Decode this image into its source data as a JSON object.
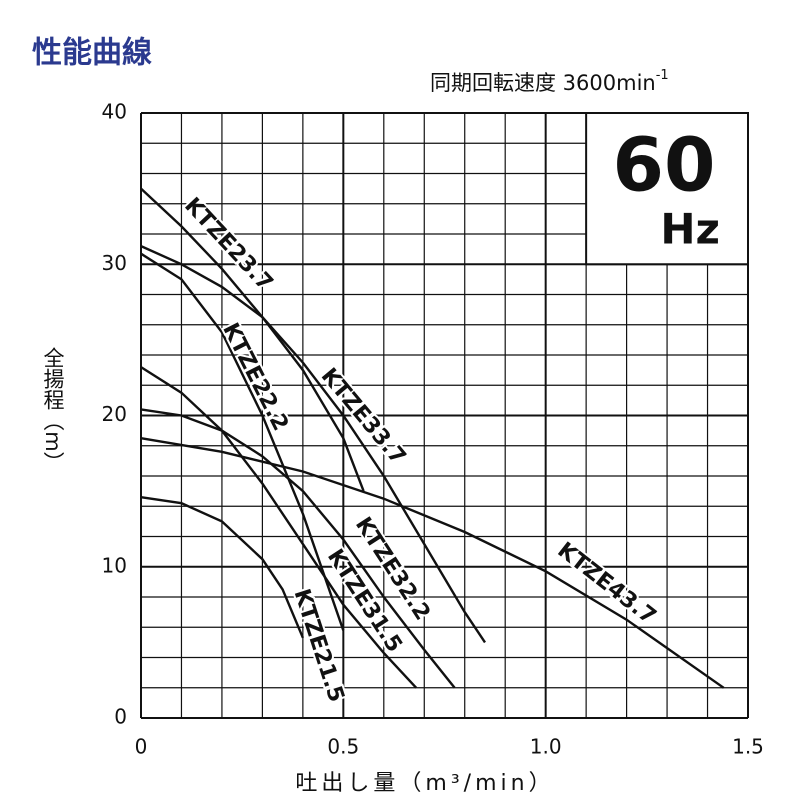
{
  "chart_data": {
    "type": "line",
    "title": "性能曲線",
    "subtitle": "同期回転速度 3600min",
    "subtitle_superscript": "-1",
    "badge_value": "60",
    "badge_unit": "Hz",
    "y_label": "全揚程（m）",
    "x_label": "吐出し量（m³/min）",
    "xlim": [
      0,
      1.5
    ],
    "ylim": [
      0,
      40
    ],
    "xticks": [
      0,
      0.5,
      {
        "value": 1.0,
        "label": "1.0"
      },
      1.5
    ],
    "yticks": [
      0,
      10,
      20,
      30,
      40
    ],
    "xgrid": [
      0.1,
      0.2,
      0.3,
      0.4,
      0.6,
      0.7,
      0.8,
      0.9,
      1.1,
      1.2,
      1.3,
      1.4
    ],
    "ygrid": [
      2,
      4,
      6,
      8,
      12,
      14,
      16,
      18,
      22,
      24,
      26,
      28,
      32,
      34,
      36,
      38
    ],
    "grid": true,
    "series": [
      {
        "name": "KTZE23.7",
        "color": "#111111",
        "x": [
          0,
          0.1,
          0.2,
          0.3,
          0.4,
          0.5,
          0.55
        ],
        "values": [
          35,
          32.5,
          29.7,
          26.5,
          23,
          18.5,
          15
        ]
      },
      {
        "name": "KTZE33.7",
        "color": "#111111",
        "x": [
          0,
          0.1,
          0.2,
          0.3,
          0.4,
          0.5,
          0.6,
          0.7,
          0.8,
          0.85
        ],
        "values": [
          31.2,
          30,
          28.5,
          26.5,
          23.5,
          20,
          16,
          11.5,
          7,
          5
        ]
      },
      {
        "name": "KTZE22.2",
        "color": "#111111",
        "x": [
          0,
          0.1,
          0.2,
          0.3,
          0.4,
          0.5
        ],
        "values": [
          30.7,
          29,
          25.5,
          20,
          13.5,
          5.8
        ]
      },
      {
        "name": "KTZE32.2",
        "color": "#111111",
        "x": [
          0,
          0.1,
          0.2,
          0.3,
          0.4,
          0.5,
          0.6,
          0.7,
          0.775
        ],
        "values": [
          20.4,
          20,
          19,
          17.3,
          15,
          11.8,
          8,
          4.5,
          2
        ]
      },
      {
        "name": "KTZE31.5",
        "color": "#111111",
        "x": [
          0,
          0.1,
          0.2,
          0.3,
          0.4,
          0.5,
          0.6,
          0.68
        ],
        "values": [
          23.2,
          21.5,
          19,
          15.5,
          11.5,
          7.5,
          4.3,
          2
        ]
      },
      {
        "name": "KTZE21.5",
        "color": "#111111",
        "x": [
          0,
          0.1,
          0.2,
          0.3,
          0.35,
          0.4
        ],
        "values": [
          14.6,
          14.2,
          13,
          10.5,
          8.5,
          5.3
        ]
      },
      {
        "name": "KTZE43.7",
        "color": "#111111",
        "x": [
          0,
          0.2,
          0.4,
          0.6,
          0.8,
          1.0,
          1.2,
          1.44
        ],
        "values": [
          18.5,
          17.6,
          16.3,
          14.5,
          12.3,
          9.7,
          6.5,
          2
        ]
      }
    ]
  }
}
